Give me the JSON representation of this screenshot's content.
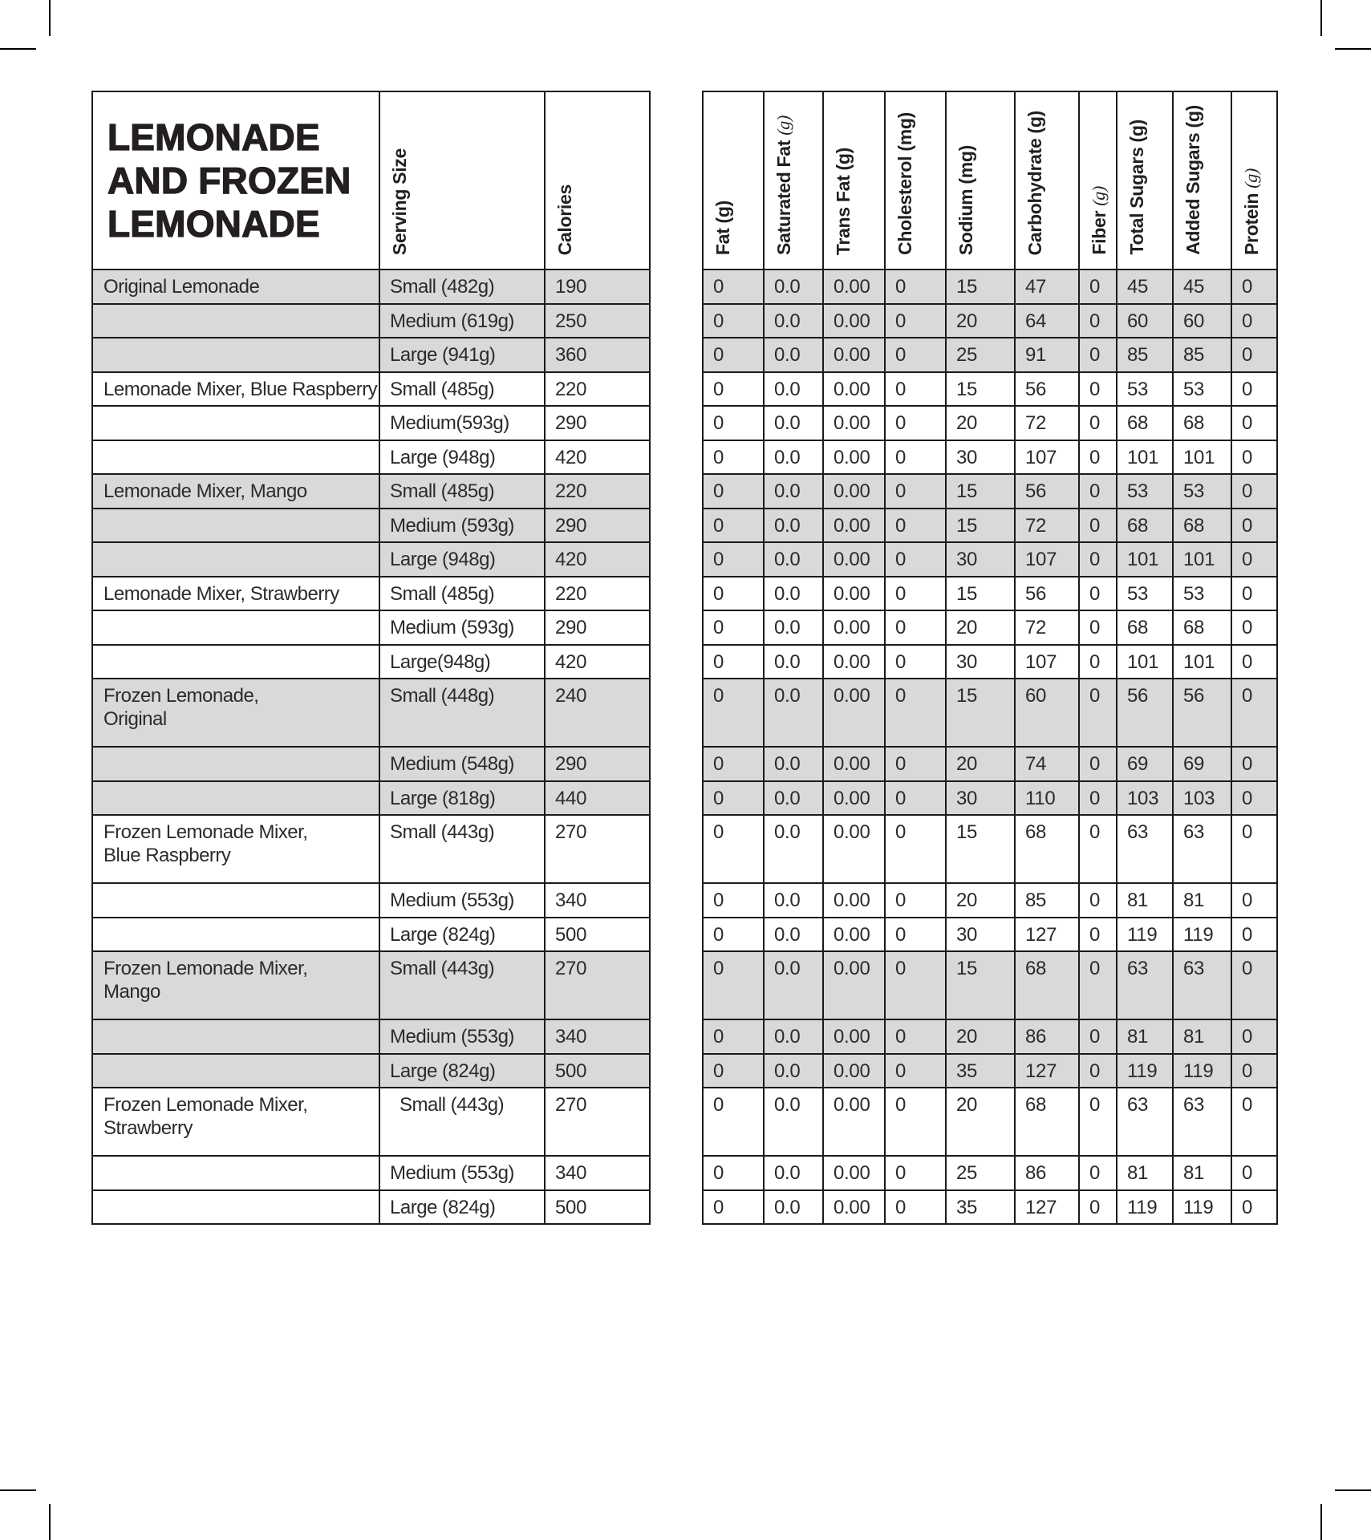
{
  "title": "LEMONADE\nAND FROZEN\nLEMONADE",
  "colors": {
    "row_shade": "#d9d9d9",
    "border": "#1c1a1b",
    "text": "#2d2a2b",
    "background": "#ffffff"
  },
  "left_columns": {
    "serving_size": "Serving Size",
    "calories": "Calories"
  },
  "nutrient_columns": [
    {
      "name": "Fat",
      "unit": "(g)",
      "unit_serif": false
    },
    {
      "name": "Saturated Fat",
      "unit": "(g)",
      "unit_serif": true
    },
    {
      "name": "Trans Fat",
      "unit": "(g)",
      "unit_serif": false
    },
    {
      "name": "Cholesterol",
      "unit": "(mg)",
      "unit_serif": false
    },
    {
      "name": "Sodium",
      "unit": "(mg)",
      "unit_serif": false
    },
    {
      "name": "Carbohydrate",
      "unit": "(g)",
      "unit_serif": false
    },
    {
      "name": "Fiber",
      "unit": "(g)",
      "unit_serif": true
    },
    {
      "name": "Total Sugars",
      "unit": "(g)",
      "unit_serif": false
    },
    {
      "name": "Added Sugars",
      "unit": "(g)",
      "unit_serif": false
    },
    {
      "name": "Protein",
      "unit": "(g)",
      "unit_serif": true
    }
  ],
  "rows": [
    {
      "item": "Original Lemonade",
      "serving": "Small (482g)",
      "calories": "190",
      "shaded": true,
      "tall": false,
      "indent": false,
      "values": [
        "0",
        "0.0",
        "0.00",
        "0",
        "15",
        "47",
        "0",
        "45",
        "45",
        "0"
      ]
    },
    {
      "item": "",
      "serving": "Medium (619g)",
      "calories": "250",
      "shaded": true,
      "tall": false,
      "indent": false,
      "values": [
        "0",
        "0.0",
        "0.00",
        "0",
        "20",
        "64",
        "0",
        "60",
        "60",
        "0"
      ]
    },
    {
      "item": "",
      "serving": "Large (941g)",
      "calories": "360",
      "shaded": true,
      "tall": false,
      "indent": false,
      "values": [
        "0",
        "0.0",
        "0.00",
        "0",
        "25",
        "91",
        "0",
        "85",
        "85",
        "0"
      ]
    },
    {
      "item": "Lemonade Mixer, Blue Raspberry",
      "serving": "Small (485g)",
      "calories": "220",
      "shaded": false,
      "tall": false,
      "indent": false,
      "values": [
        "0",
        "0.0",
        "0.00",
        "0",
        "15",
        "56",
        "0",
        "53",
        "53",
        "0"
      ]
    },
    {
      "item": "",
      "serving": "Medium(593g)",
      "calories": "290",
      "shaded": false,
      "tall": false,
      "indent": false,
      "values": [
        "0",
        "0.0",
        "0.00",
        "0",
        "20",
        "72",
        "0",
        "68",
        "68",
        "0"
      ]
    },
    {
      "item": "",
      "serving": "Large (948g)",
      "calories": "420",
      "shaded": false,
      "tall": false,
      "indent": false,
      "values": [
        "0",
        "0.0",
        "0.00",
        "0",
        "30",
        "107",
        "0",
        "101",
        "101",
        "0"
      ]
    },
    {
      "item": "Lemonade Mixer, Mango",
      "serving": "Small (485g)",
      "calories": "220",
      "shaded": true,
      "tall": false,
      "indent": false,
      "values": [
        "0",
        "0.0",
        "0.00",
        "0",
        "15",
        "56",
        "0",
        "53",
        "53",
        "0"
      ]
    },
    {
      "item": "",
      "serving": "Medium (593g)",
      "calories": "290",
      "shaded": true,
      "tall": false,
      "indent": false,
      "values": [
        "0",
        "0.0",
        "0.00",
        "0",
        "15",
        "72",
        "0",
        "68",
        "68",
        "0"
      ]
    },
    {
      "item": "",
      "serving": "Large (948g)",
      "calories": "420",
      "shaded": true,
      "tall": false,
      "indent": false,
      "values": [
        "0",
        "0.0",
        "0.00",
        "0",
        "30",
        "107",
        "0",
        "101",
        "101",
        "0"
      ]
    },
    {
      "item": "Lemonade Mixer, Strawberry",
      "serving": "Small (485g)",
      "calories": "220",
      "shaded": false,
      "tall": false,
      "indent": false,
      "values": [
        "0",
        "0.0",
        "0.00",
        "0",
        "15",
        "56",
        "0",
        "53",
        "53",
        "0"
      ]
    },
    {
      "item": "",
      "serving": "Medium (593g)",
      "calories": "290",
      "shaded": false,
      "tall": false,
      "indent": false,
      "values": [
        "0",
        "0.0",
        "0.00",
        "0",
        "20",
        "72",
        "0",
        "68",
        "68",
        "0"
      ]
    },
    {
      "item": "",
      "serving": "Large(948g)",
      "calories": "420",
      "shaded": false,
      "tall": false,
      "indent": false,
      "values": [
        "0",
        "0.0",
        "0.00",
        "0",
        "30",
        "107",
        "0",
        "101",
        "101",
        "0"
      ]
    },
    {
      "item": "Frozen Lemonade,\nOriginal",
      "serving": "Small (448g)",
      "calories": "240",
      "shaded": true,
      "tall": true,
      "indent": false,
      "values": [
        "0",
        "0.0",
        "0.00",
        "0",
        "15",
        "60",
        "0",
        "56",
        "56",
        "0"
      ]
    },
    {
      "item": "",
      "serving": "Medium (548g)",
      "calories": "290",
      "shaded": true,
      "tall": false,
      "indent": false,
      "values": [
        "0",
        "0.0",
        "0.00",
        "0",
        "20",
        "74",
        "0",
        "69",
        "69",
        "0"
      ]
    },
    {
      "item": "",
      "serving": "Large (818g)",
      "calories": "440",
      "shaded": true,
      "tall": false,
      "indent": false,
      "values": [
        "0",
        "0.0",
        "0.00",
        "0",
        "30",
        "110",
        "0",
        "103",
        "103",
        "0"
      ]
    },
    {
      "item": "Frozen Lemonade Mixer,\nBlue Raspberry",
      "serving": "Small (443g)",
      "calories": "270",
      "shaded": false,
      "tall": true,
      "indent": false,
      "values": [
        "0",
        "0.0",
        "0.00",
        "0",
        "15",
        "68",
        "0",
        "63",
        "63",
        "0"
      ]
    },
    {
      "item": "",
      "serving": "Medium (553g)",
      "calories": "340",
      "shaded": false,
      "tall": false,
      "indent": false,
      "values": [
        "0",
        "0.0",
        "0.00",
        "0",
        "20",
        "85",
        "0",
        "81",
        "81",
        "0"
      ]
    },
    {
      "item": "",
      "serving": "Large (824g)",
      "calories": "500",
      "shaded": false,
      "tall": false,
      "indent": false,
      "values": [
        "0",
        "0.0",
        "0.00",
        "0",
        "30",
        "127",
        "0",
        "119",
        "119",
        "0"
      ]
    },
    {
      "item": "Frozen Lemonade Mixer,\nMango",
      "serving": "Small (443g)",
      "calories": "270",
      "shaded": true,
      "tall": true,
      "indent": false,
      "values": [
        "0",
        "0.0",
        "0.00",
        "0",
        "15",
        "68",
        "0",
        "63",
        "63",
        "0"
      ]
    },
    {
      "item": "",
      "serving": "Medium (553g)",
      "calories": "340",
      "shaded": true,
      "tall": false,
      "indent": false,
      "values": [
        "0",
        "0.0",
        "0.00",
        "0",
        "20",
        "86",
        "0",
        "81",
        "81",
        "0"
      ]
    },
    {
      "item": "",
      "serving": "Large (824g)",
      "calories": "500",
      "shaded": true,
      "tall": false,
      "indent": false,
      "values": [
        "0",
        "0.0",
        "0.00",
        "0",
        "35",
        "127",
        "0",
        "119",
        "119",
        "0"
      ]
    },
    {
      "item": "Frozen Lemonade Mixer,\nStrawberry",
      "serving": "Small (443g)",
      "calories": "270",
      "shaded": false,
      "tall": true,
      "indent": true,
      "values": [
        "0",
        "0.0",
        "0.00",
        "0",
        "20",
        "68",
        "0",
        "63",
        "63",
        "0"
      ]
    },
    {
      "item": "",
      "serving": "Medium (553g)",
      "calories": "340",
      "shaded": false,
      "tall": false,
      "indent": false,
      "values": [
        "0",
        "0.0",
        "0.00",
        "0",
        "25",
        "86",
        "0",
        "81",
        "81",
        "0"
      ]
    },
    {
      "item": "",
      "serving": "Large (824g)",
      "calories": "500",
      "shaded": false,
      "tall": false,
      "indent": false,
      "values": [
        "0",
        "0.0",
        "0.00",
        "0",
        "35",
        "127",
        "0",
        "119",
        "119",
        "0"
      ]
    }
  ]
}
